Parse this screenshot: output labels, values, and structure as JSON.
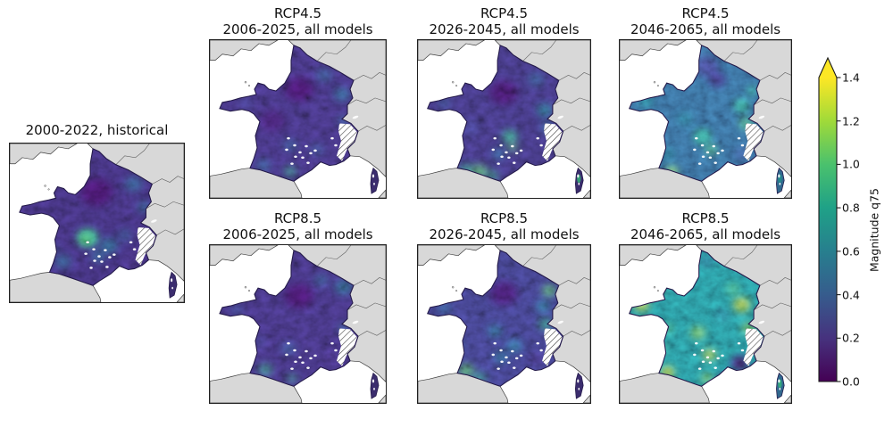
{
  "figure": {
    "background": "#ffffff",
    "land_color": "#d8d8d8",
    "sea_color": "#ffffff",
    "coast_color": "#3d3d3d",
    "frame_color": "#1f1f1f"
  },
  "colorbar": {
    "label": "Magnitude q75",
    "tick_labels": [
      "0.0",
      "0.2",
      "0.4",
      "0.6",
      "0.8",
      "1.0",
      "1.2",
      "1.4"
    ],
    "min": 0.0,
    "max": 1.4,
    "extend": "max",
    "colormap": "viridis",
    "stops": [
      "#440154",
      "#46327e",
      "#365c8d",
      "#277f8e",
      "#1fa187",
      "#4ac16d",
      "#a0da39",
      "#fde725"
    ]
  },
  "maps": [
    {
      "id": "historical",
      "title_lines": [
        "2000-2022, historical"
      ],
      "base": "#3b2c6e",
      "seed": 11,
      "corsica": "#3b2d6e",
      "corsica_dot": null,
      "blobs": [
        [
          140,
          46,
          10,
          "#2a788e",
          0.5
        ],
        [
          152,
          72,
          8,
          "#2a788e",
          0.45
        ],
        [
          88,
          107,
          12,
          "#35b779",
          0.8
        ],
        [
          86,
          108,
          5,
          "#5ec962",
          0.85
        ],
        [
          112,
          116,
          10,
          "#26828e",
          0.55
        ],
        [
          100,
          128,
          8,
          "#26828e",
          0.45
        ],
        [
          60,
          134,
          9,
          "#26828e",
          0.45
        ],
        [
          130,
          104,
          8,
          "#31688e",
          0.45
        ],
        [
          98,
          55,
          18,
          "#440154",
          0.5
        ],
        [
          140,
          132,
          10,
          "#46327e",
          0.55
        ],
        [
          48,
          120,
          7,
          "#31688e",
          0.4
        ]
      ]
    },
    {
      "id": "rcp45-2006-2025",
      "title_lines": [
        "RCP4.5",
        "2006-2025, all models"
      ],
      "base": "#3d2f72",
      "seed": 23,
      "corsica": "#3b2d6e",
      "corsica_dot": null,
      "blobs": [
        [
          148,
          62,
          9,
          "#26828e",
          0.5
        ],
        [
          128,
          40,
          9,
          "#2a788e",
          0.4
        ],
        [
          150,
          92,
          6,
          "#26828e",
          0.45
        ],
        [
          90,
          150,
          7,
          "#35b779",
          0.5
        ],
        [
          60,
          143,
          8,
          "#2a788e",
          0.45
        ],
        [
          100,
          56,
          16,
          "#440154",
          0.5
        ],
        [
          70,
          92,
          14,
          "#440154",
          0.3
        ],
        [
          90,
          120,
          8,
          "#31688e",
          0.5
        ],
        [
          120,
          125,
          8,
          "#31688e",
          0.4
        ],
        [
          40,
          72,
          8,
          "#3e4989",
          0.4
        ]
      ]
    },
    {
      "id": "rcp45-2026-2045",
      "title_lines": [
        "RCP4.5",
        "2026-2045, all models"
      ],
      "base": "#3c3273",
      "seed": 37,
      "corsica": "#3b2d6e",
      "corsica_dot": "#35b779",
      "blobs": [
        [
          145,
          80,
          9,
          "#21918c",
          0.55
        ],
        [
          148,
          100,
          7,
          "#26828e",
          0.5
        ],
        [
          135,
          45,
          9,
          "#2a788e",
          0.4
        ],
        [
          105,
          110,
          9,
          "#35b779",
          0.6
        ],
        [
          108,
          122,
          6,
          "#5ec962",
          0.5
        ],
        [
          92,
          130,
          7,
          "#26828e",
          0.5
        ],
        [
          70,
          150,
          10,
          "#5ec962",
          0.55
        ],
        [
          55,
          148,
          8,
          "#35b779",
          0.5
        ],
        [
          85,
          155,
          7,
          "#35b779",
          0.5
        ],
        [
          98,
          60,
          16,
          "#440154",
          0.5
        ],
        [
          60,
          100,
          10,
          "#3e4989",
          0.4
        ],
        [
          30,
          72,
          7,
          "#31688e",
          0.4
        ]
      ]
    },
    {
      "id": "rcp45-2046-2065",
      "title_lines": [
        "RCP4.5",
        "2046-2065, all models"
      ],
      "base": "#33628d",
      "seed": 41,
      "corsica": "#31688e",
      "corsica_dot": "#21918c",
      "blobs": [
        [
          100,
          30,
          14,
          "#46327e",
          0.6
        ],
        [
          112,
          45,
          10,
          "#440154",
          0.45
        ],
        [
          140,
          75,
          9,
          "#35b779",
          0.55
        ],
        [
          145,
          95,
          8,
          "#5ec962",
          0.5
        ],
        [
          95,
          110,
          10,
          "#35b779",
          0.6
        ],
        [
          105,
          125,
          7,
          "#5ec962",
          0.5
        ],
        [
          60,
          150,
          7,
          "#a0da39",
          0.6
        ],
        [
          55,
          130,
          8,
          "#26828e",
          0.5
        ],
        [
          30,
          70,
          8,
          "#21918c",
          0.5
        ],
        [
          140,
          130,
          9,
          "#3e4989",
          0.55
        ],
        [
          152,
          58,
          6,
          "#35b779",
          0.5
        ],
        [
          75,
          90,
          9,
          "#26828e",
          0.45
        ]
      ]
    },
    {
      "id": "rcp85-2006-2025",
      "title_lines": [
        "RCP8.5",
        "2006-2025, all models"
      ],
      "base": "#3d2f72",
      "seed": 53,
      "corsica": "#3b2d6e",
      "corsica_dot": null,
      "blobs": [
        [
          150,
          48,
          10,
          "#26828e",
          0.55
        ],
        [
          125,
          40,
          8,
          "#2a788e",
          0.4
        ],
        [
          62,
          142,
          8,
          "#35b779",
          0.5
        ],
        [
          92,
          152,
          6,
          "#35b779",
          0.45
        ],
        [
          100,
          58,
          16,
          "#440154",
          0.5
        ],
        [
          135,
          128,
          9,
          "#46327e",
          0.5
        ],
        [
          88,
          118,
          8,
          "#31688e",
          0.5
        ],
        [
          55,
          110,
          8,
          "#3e4989",
          0.4
        ],
        [
          150,
          95,
          6,
          "#26828e",
          0.45
        ],
        [
          30,
          74,
          7,
          "#31688e",
          0.35
        ]
      ]
    },
    {
      "id": "rcp85-2026-2045",
      "title_lines": [
        "RCP8.5",
        "2026-2045, all models"
      ],
      "base": "#3b3a7a",
      "seed": 67,
      "corsica": "#3b2d6e",
      "corsica_dot": null,
      "blobs": [
        [
          150,
          52,
          8,
          "#5ec962",
          0.6
        ],
        [
          146,
          90,
          8,
          "#35b779",
          0.55
        ],
        [
          143,
          70,
          8,
          "#21918c",
          0.5
        ],
        [
          110,
          115,
          9,
          "#26828e",
          0.55
        ],
        [
          95,
          128,
          8,
          "#26828e",
          0.5
        ],
        [
          55,
          143,
          9,
          "#5ec962",
          0.6
        ],
        [
          70,
          152,
          8,
          "#35b779",
          0.5
        ],
        [
          98,
          55,
          16,
          "#440154",
          0.5
        ],
        [
          75,
          35,
          10,
          "#46327e",
          0.45
        ],
        [
          135,
          130,
          9,
          "#46327e",
          0.6
        ],
        [
          45,
          115,
          8,
          "#31688e",
          0.45
        ],
        [
          30,
          72,
          7,
          "#26828e",
          0.4
        ],
        [
          88,
          98,
          8,
          "#21918c",
          0.45
        ]
      ]
    },
    {
      "id": "rcp85-2046-2065",
      "title_lines": [
        "RCP8.5",
        "2046-2065, all models"
      ],
      "base": "#25848e",
      "seed": 79,
      "corsica": "#31688e",
      "corsica_dot": "#35b779",
      "blobs": [
        [
          25,
          68,
          9,
          "#dfe318",
          0.55
        ],
        [
          42,
          52,
          7,
          "#a0da39",
          0.5
        ],
        [
          62,
          30,
          8,
          "#a0da39",
          0.5
        ],
        [
          55,
          145,
          8,
          "#dfe318",
          0.6
        ],
        [
          45,
          118,
          8,
          "#5ec962",
          0.5
        ],
        [
          90,
          100,
          9,
          "#a0da39",
          0.5
        ],
        [
          103,
          125,
          8,
          "#dfe318",
          0.5
        ],
        [
          140,
          68,
          10,
          "#dfe318",
          0.55
        ],
        [
          148,
          95,
          8,
          "#a0da39",
          0.5
        ],
        [
          130,
          50,
          8,
          "#5ec962",
          0.5
        ],
        [
          100,
          18,
          10,
          "#31688e",
          0.5
        ],
        [
          82,
          38,
          9,
          "#2a788e",
          0.5
        ],
        [
          118,
          80,
          9,
          "#31688e",
          0.4
        ],
        [
          138,
          135,
          11,
          "#440154",
          0.7
        ],
        [
          120,
          152,
          8,
          "#46327e",
          0.55
        ],
        [
          100,
          152,
          7,
          "#a0da39",
          0.5
        ],
        [
          55,
          95,
          7,
          "#5ec962",
          0.45
        ]
      ]
    }
  ],
  "chart_data": {
    "type": "heatmap",
    "subtype": "map-grid-choropleth",
    "region": "France",
    "variable": "Magnitude q75",
    "colormap": "viridis",
    "scale": {
      "min": 0.0,
      "max": 1.4,
      "ticks": [
        0.0,
        0.2,
        0.4,
        0.6,
        0.8,
        1.0,
        1.2,
        1.4
      ],
      "extend": "max",
      "label": "Magnitude q75"
    },
    "layout": {
      "grid": "1 historical panel left, 2 rows x 3 columns of scenario panels right, vertical colorbar far right",
      "no_data": "white diagonal hatching over Alps, Pyrenees and parts of Corsica"
    },
    "panels": [
      {
        "title": "2000-2022, historical",
        "scenario": "historical",
        "period": "2000-2022",
        "approx_typical": 0.15,
        "approx_range": [
          0.0,
          0.8
        ],
        "pattern": "mostly dark purple (~0.1-0.2); bright green patch ~0.6-0.8 over Massif Central; teal ~0.4 in north-east and south-west"
      },
      {
        "title": "RCP4.5 2006-2025, all models",
        "scenario": "RCP4.5",
        "period": "2006-2025",
        "approx_typical": 0.15,
        "approx_range": [
          0.0,
          0.6
        ],
        "pattern": "dark purple overall; teal ~0.4 along eastern border; small green spots on the Mediterranean coast"
      },
      {
        "title": "RCP4.5 2026-2045, all models",
        "scenario": "RCP4.5",
        "period": "2026-2045",
        "approx_typical": 0.2,
        "approx_range": [
          0.0,
          0.8
        ],
        "pattern": "dark purple north; teal/green ~0.4-0.7 in center-east and a bright green strip along the Pyrenees/Mediterranean coast; green in Corsica"
      },
      {
        "title": "RCP4.5 2046-2065, all models",
        "scenario": "RCP4.5",
        "period": "2046-2065",
        "approx_typical": 0.35,
        "approx_range": [
          0.1,
          0.9
        ],
        "pattern": "blue/teal base ~0.3-0.5; darker purple patch in north-center; green patches ~0.6-0.8 in center and east; bright spot on south-west coast"
      },
      {
        "title": "RCP8.5 2006-2025, all models",
        "scenario": "RCP8.5",
        "period": "2006-2025",
        "approx_typical": 0.15,
        "approx_range": [
          0.0,
          0.6
        ],
        "pattern": "dark purple overall; teal patch in Alsace/north-east; slight green on south-west coast"
      },
      {
        "title": "RCP8.5 2026-2045, all models",
        "scenario": "RCP8.5",
        "period": "2026-2045",
        "approx_typical": 0.25,
        "approx_range": [
          0.0,
          0.8
        ],
        "pattern": "purple-blue base; teal band along east; green spots in Alsace, east edge and south-west coast; dark purple Provence"
      },
      {
        "title": "RCP8.5 2046-2065, all models",
        "scenario": "RCP8.5",
        "period": "2046-2065",
        "approx_typical": 0.6,
        "approx_range": [
          0.1,
          1.2
        ],
        "pattern": "teal base ~0.6 with many yellow patches ~1.0-1.2 in Brittany, center, east and along coasts; south-east (Provence/Alps) stays dark purple ~0.1-0.2"
      }
    ]
  }
}
